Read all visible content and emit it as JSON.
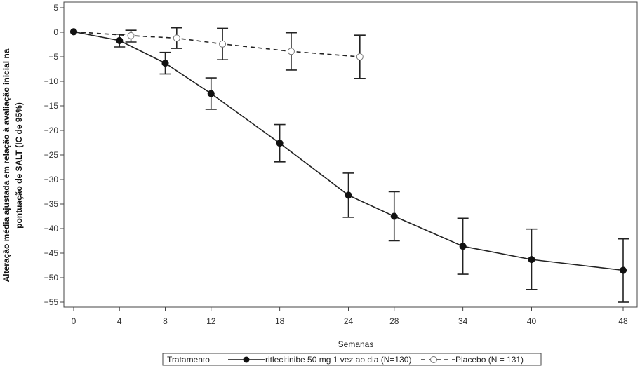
{
  "chart_data": {
    "type": "line",
    "xlabel": "Semanas",
    "ylabel_lines": [
      "Alteração média ajustada em relação à avaliação inicial na",
      "pontuação de SALT (IC de 95%)"
    ],
    "x_ticks": [
      0,
      4,
      8,
      12,
      18,
      24,
      28,
      34,
      40,
      48
    ],
    "y_ticks": [
      5,
      0,
      -5,
      -10,
      -15,
      -20,
      -25,
      -30,
      -35,
      -40,
      -45,
      -50,
      -55
    ],
    "ylim": [
      -56,
      6
    ],
    "grid": false,
    "legend": {
      "position": "bottom",
      "title": "Tratamento",
      "entries": [
        "ritlecitinibe 50 mg 1 vez ao dia (N=130)",
        "Placebo (N = 131)"
      ]
    },
    "series": [
      {
        "name": "ritlecitinibe 50 mg 1 vez ao dia (N=130)",
        "style": "solid-filled",
        "color": "#111111",
        "points": [
          {
            "x": 0,
            "y": 0.1,
            "lo": null,
            "hi": null
          },
          {
            "x": 4,
            "y": -1.7,
            "lo": -3.0,
            "hi": -0.4
          },
          {
            "x": 8,
            "y": -6.3,
            "lo": -8.5,
            "hi": -4.1
          },
          {
            "x": 12,
            "y": -12.5,
            "lo": -15.7,
            "hi": -9.3
          },
          {
            "x": 18,
            "y": -22.6,
            "lo": -26.4,
            "hi": -18.8
          },
          {
            "x": 24,
            "y": -33.2,
            "lo": -37.7,
            "hi": -28.7
          },
          {
            "x": 28,
            "y": -37.5,
            "lo": -42.5,
            "hi": -32.5
          },
          {
            "x": 34,
            "y": -43.6,
            "lo": -49.3,
            "hi": -37.9
          },
          {
            "x": 40,
            "y": -46.3,
            "lo": -52.4,
            "hi": -40.1
          },
          {
            "x": 48,
            "y": -48.5,
            "lo": -55.0,
            "hi": -42.1
          }
        ]
      },
      {
        "name": "Placebo (N = 131)",
        "style": "dashed-open",
        "color": "#777777",
        "points": [
          {
            "x": 0,
            "y": 0.1,
            "lo": null,
            "hi": null
          },
          {
            "x": 5,
            "y": -0.7,
            "lo": -2.0,
            "hi": 0.4
          },
          {
            "x": 9,
            "y": -1.2,
            "lo": -3.3,
            "hi": 0.9
          },
          {
            "x": 13,
            "y": -2.4,
            "lo": -5.6,
            "hi": 0.8
          },
          {
            "x": 19,
            "y": -3.9,
            "lo": -7.7,
            "hi": -0.1
          },
          {
            "x": 25,
            "y": -5.0,
            "lo": -9.4,
            "hi": -0.6
          }
        ]
      }
    ]
  }
}
